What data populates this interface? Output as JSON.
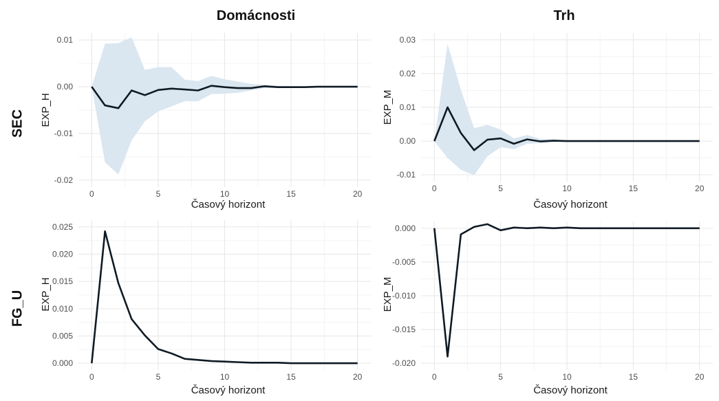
{
  "column_titles": [
    "Domácnosti",
    "Trh"
  ],
  "row_titles": [
    "SEC",
    "FG_U"
  ],
  "colors": {
    "line": "#0f1a24",
    "ribbon": "#dae6f0",
    "grid_major": "#e6e6e6",
    "grid_minor": "#f3f3f3"
  },
  "chart_data": [
    {
      "type": "line",
      "panel": "SEC / Domácnosti",
      "xlabel": "Časový horizont",
      "ylabel": "EXP_H",
      "xlim": [
        0,
        20
      ],
      "ylim": [
        -0.02,
        0.01
      ],
      "xticks": [
        0,
        5,
        10,
        15,
        20
      ],
      "xtick_labels": [
        "0",
        "5",
        "10",
        "15",
        "20"
      ],
      "yticks": [
        0.01,
        0.0,
        -0.01,
        -0.02
      ],
      "ytick_labels": [
        "0.01",
        "0.00",
        "-0.01",
        "-0.02"
      ],
      "grid": true,
      "x": [
        0,
        1,
        2,
        3,
        4,
        5,
        6,
        7,
        8,
        9,
        10,
        11,
        12,
        13,
        14,
        15,
        16,
        17,
        18,
        19,
        20
      ],
      "series": [
        {
          "values": [
            0.0,
            -0.004,
            -0.0046,
            -0.0008,
            -0.0018,
            -0.0007,
            -0.0004,
            -0.0006,
            -0.0008,
            0.0002,
            -0.0001,
            -0.0003,
            -0.0003,
            0.0001,
            -0.0001,
            -0.0001,
            -0.0001,
            0.0,
            0.0,
            0.0,
            0.0
          ],
          "lower": [
            0.0,
            -0.0162,
            -0.0188,
            -0.0115,
            -0.0074,
            -0.0053,
            -0.0042,
            -0.0031,
            -0.0031,
            -0.0016,
            -0.0015,
            -0.0013,
            -0.0008,
            -0.0003,
            -0.0002,
            -0.0001,
            -0.0001,
            0.0,
            0.0,
            0.0,
            0.0
          ],
          "upper": [
            0.0,
            0.0092,
            0.0093,
            0.0106,
            0.0036,
            0.0042,
            0.0042,
            0.0015,
            0.0012,
            0.0023,
            0.0016,
            0.0011,
            0.0006,
            0.0004,
            0.0002,
            0.0001,
            0.0001,
            0.0001,
            0.0,
            0.0,
            0.0
          ]
        }
      ]
    },
    {
      "type": "line",
      "panel": "SEC / Trh",
      "xlabel": "Časový horizont",
      "ylabel": "EXP_M",
      "xlim": [
        0,
        20
      ],
      "ylim": [
        -0.01,
        0.03
      ],
      "xticks": [
        0,
        5,
        10,
        15,
        20
      ],
      "xtick_labels": [
        "0",
        "5",
        "10",
        "15",
        "20"
      ],
      "yticks": [
        0.03,
        0.02,
        0.01,
        0.0,
        -0.01
      ],
      "ytick_labels": [
        "0.03",
        "0.02",
        "0.01",
        "0.00",
        "-0.01"
      ],
      "grid": true,
      "x": [
        0,
        1,
        2,
        3,
        4,
        5,
        6,
        7,
        8,
        9,
        10,
        11,
        12,
        13,
        14,
        15,
        16,
        17,
        18,
        19,
        20
      ],
      "series": [
        {
          "values": [
            0.0,
            0.01,
            0.0024,
            -0.0027,
            0.0004,
            0.0008,
            -0.0008,
            0.0005,
            -0.0001,
            0.0001,
            0.0,
            0.0,
            0.0,
            0.0,
            0.0,
            0.0,
            0.0,
            0.0,
            0.0,
            0.0,
            0.0
          ],
          "lower": [
            0.0,
            -0.005,
            -0.0085,
            -0.0101,
            -0.0045,
            -0.0018,
            -0.0024,
            -0.0008,
            -0.0006,
            -0.0003,
            -0.0002,
            -0.0001,
            0.0,
            0.0,
            0.0,
            0.0,
            0.0,
            0.0,
            0.0,
            0.0,
            0.0
          ],
          "upper": [
            0.0,
            0.0288,
            0.0152,
            0.0038,
            0.0048,
            0.0034,
            0.0008,
            0.0018,
            0.0007,
            0.0005,
            0.0002,
            0.0001,
            0.0001,
            0.0,
            0.0,
            0.0,
            0.0,
            0.0,
            0.0,
            0.0,
            0.0
          ]
        }
      ]
    },
    {
      "type": "line",
      "panel": "FG_U / Domácnosti",
      "xlabel": "Časový horizont",
      "ylabel": "EXP_H",
      "xlim": [
        0,
        20
      ],
      "ylim": [
        0.0,
        0.025
      ],
      "xticks": [
        0,
        5,
        10,
        15,
        20
      ],
      "xtick_labels": [
        "0",
        "5",
        "10",
        "15",
        "20"
      ],
      "yticks": [
        0.025,
        0.02,
        0.015,
        0.01,
        0.005,
        0.0
      ],
      "ytick_labels": [
        "0.025",
        "0.020",
        "0.015",
        "0.010",
        "0.005",
        "0.000"
      ],
      "grid": true,
      "x": [
        0,
        1,
        2,
        3,
        4,
        5,
        6,
        7,
        8,
        9,
        10,
        11,
        12,
        13,
        14,
        15,
        16,
        17,
        18,
        19,
        20
      ],
      "series": [
        {
          "values": [
            0.0,
            0.0242,
            0.0147,
            0.0081,
            0.0051,
            0.0026,
            0.0018,
            0.0008,
            0.0006,
            0.0004,
            0.0003,
            0.0002,
            0.0001,
            0.0001,
            0.0001,
            0.0,
            0.0,
            0.0,
            0.0,
            0.0,
            0.0
          ]
        }
      ]
    },
    {
      "type": "line",
      "panel": "FG_U / Trh",
      "xlabel": "Časový horizont",
      "ylabel": "EXP_M",
      "xlim": [
        0,
        20
      ],
      "ylim": [
        -0.02,
        0.0
      ],
      "xticks": [
        0,
        5,
        10,
        15,
        20
      ],
      "xtick_labels": [
        "0",
        "5",
        "10",
        "15",
        "20"
      ],
      "yticks": [
        0.0,
        -0.005,
        -0.01,
        -0.015,
        -0.02
      ],
      "ytick_labels": [
        "0.000",
        "-0.005",
        "-0.010",
        "-0.015",
        "-0.020"
      ],
      "grid": true,
      "x": [
        0,
        1,
        2,
        3,
        4,
        5,
        6,
        7,
        8,
        9,
        10,
        11,
        12,
        13,
        14,
        15,
        16,
        17,
        18,
        19,
        20
      ],
      "series": [
        {
          "values": [
            0.0,
            -0.019,
            -0.0009,
            0.0002,
            0.0006,
            -0.0003,
            0.0001,
            0.0,
            0.0001,
            0.0,
            0.0001,
            0.0,
            0.0,
            0.0,
            0.0,
            0.0,
            0.0,
            0.0,
            0.0,
            0.0,
            0.0
          ]
        }
      ]
    }
  ]
}
